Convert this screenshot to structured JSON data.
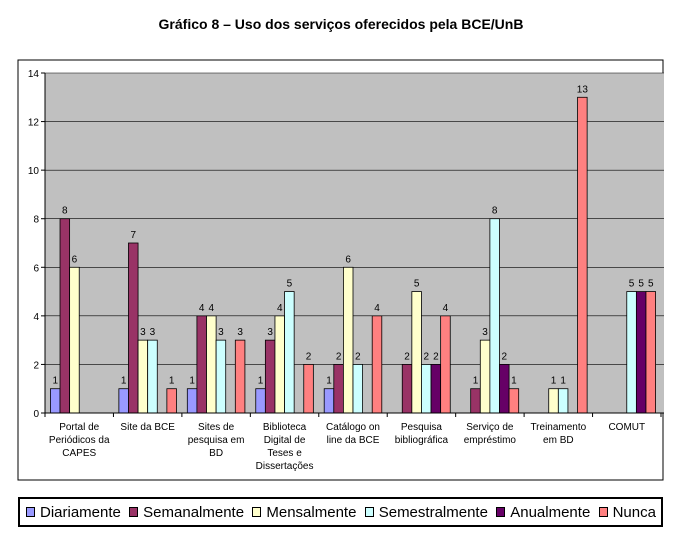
{
  "chart_data": {
    "type": "bar",
    "title": "Gráfico 8 – Uso dos serviços oferecidos pela BCE/UnB",
    "categories": [
      [
        "Portal de",
        "Periódicos da",
        "CAPES"
      ],
      [
        "Site da BCE"
      ],
      [
        "Sites de",
        "pesquisa em",
        "BD"
      ],
      [
        "Biblioteca",
        "Digital de",
        "Teses e",
        "Dissertações"
      ],
      [
        "Catálogo on",
        "line da BCE"
      ],
      [
        "Pesquisa",
        "bibliográfica"
      ],
      [
        "Serviço de",
        "empréstimo"
      ],
      [
        "Treinamento",
        "em BD"
      ],
      [
        "COMUT"
      ]
    ],
    "series": [
      {
        "name": "Diariamente",
        "color": "#9999ff",
        "values": [
          1,
          1,
          1,
          1,
          1,
          null,
          null,
          null,
          null
        ]
      },
      {
        "name": "Semanalmente",
        "color": "#993366",
        "values": [
          8,
          7,
          4,
          3,
          2,
          2,
          1,
          null,
          null
        ]
      },
      {
        "name": "Mensalmente",
        "color": "#ffffcc",
        "values": [
          6,
          3,
          4,
          4,
          6,
          5,
          3,
          1,
          null
        ]
      },
      {
        "name": "Semestralmente",
        "color": "#ccffff",
        "values": [
          null,
          3,
          3,
          5,
          2,
          2,
          8,
          1,
          5
        ]
      },
      {
        "name": "Anualmente",
        "color": "#660066",
        "values": [
          null,
          null,
          null,
          null,
          null,
          2,
          2,
          null,
          5
        ]
      },
      {
        "name": "Nunca",
        "color": "#ff8080",
        "values": [
          null,
          1,
          3,
          2,
          4,
          4,
          1,
          13,
          5
        ]
      }
    ],
    "ylim": [
      0,
      14
    ],
    "yticks": [
      0,
      2,
      4,
      6,
      8,
      10,
      12,
      14
    ],
    "grid": true,
    "legend_position": "bottom",
    "plot_background": "#c0c0c0"
  }
}
